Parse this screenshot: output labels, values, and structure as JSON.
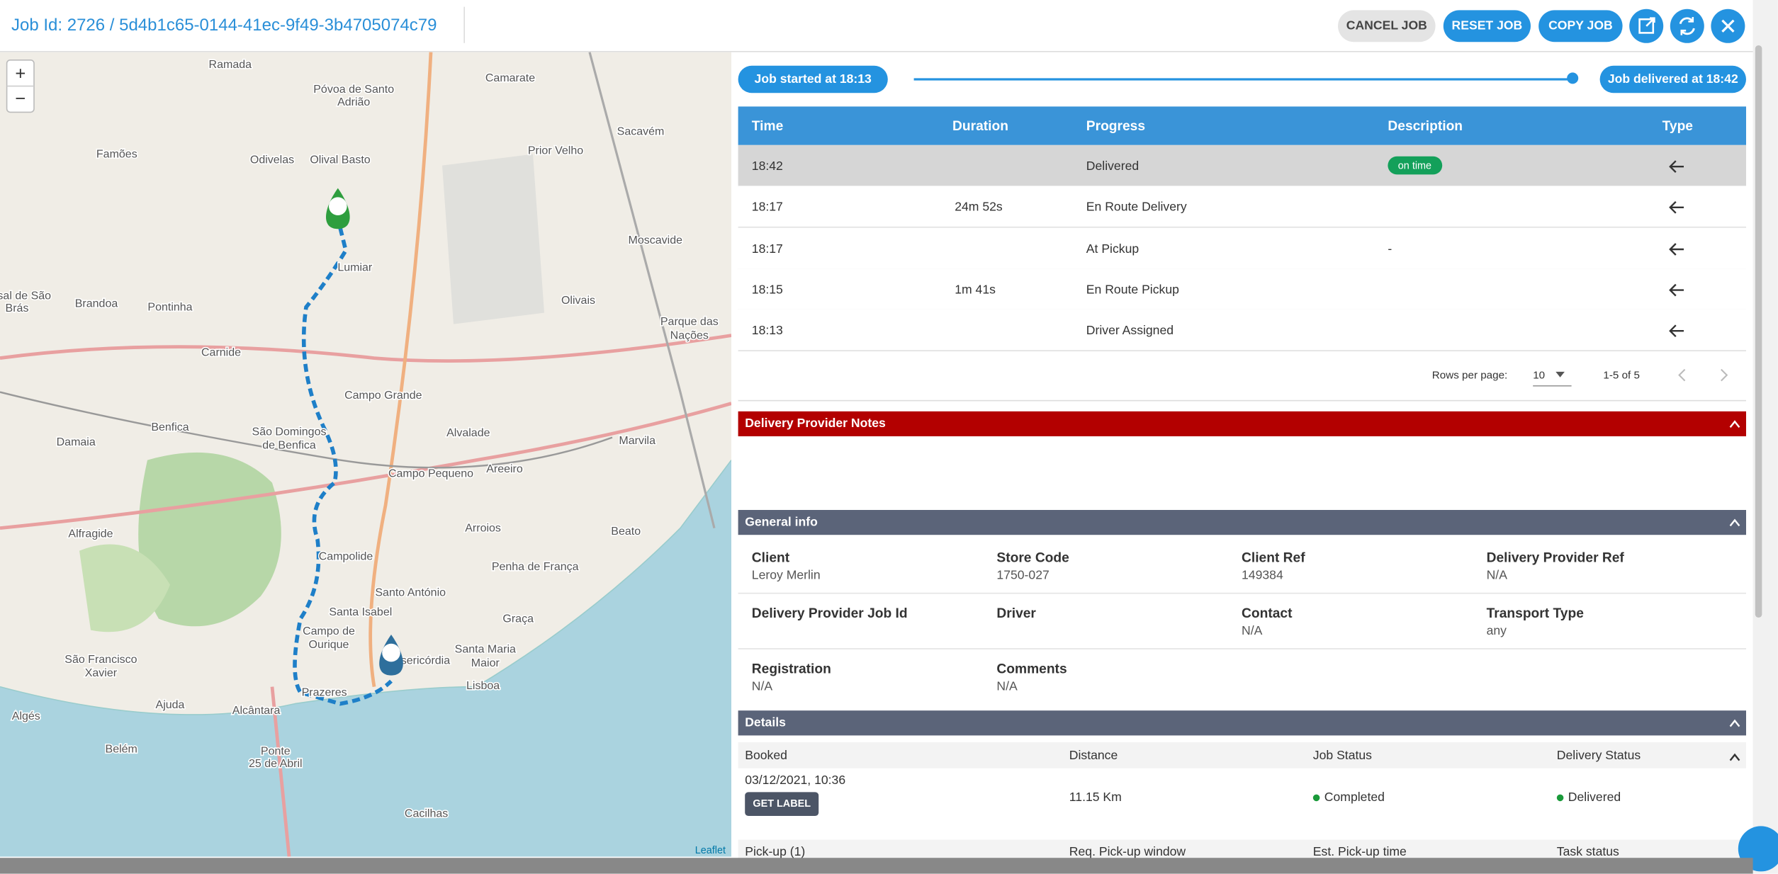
{
  "header": {
    "job_id": "Job Id: 2726 / 5d4b1c65-0144-41ec-9f49-3b4705074c79",
    "buttons": [
      "CANCEL JOB",
      "RESET JOB",
      "COPY JOB"
    ]
  },
  "timeline": {
    "started": "Job started at 18:13",
    "delivered": "Job delivered at 18:42"
  },
  "table": {
    "columns": [
      "Time",
      "Duration",
      "Progress",
      "Description",
      "Type"
    ],
    "rows": [
      {
        "time": "18:42",
        "progress": "Delivered",
        "description": "on time"
      },
      {
        "time": "18:17",
        "duration": "24m 52s",
        "progress": "En Route Delivery"
      },
      {
        "time": "18:17",
        "progress": "At Pickup",
        "description": "-"
      },
      {
        "time": "18:15",
        "duration": "1m 41s",
        "progress": "En Route Pickup"
      },
      {
        "time": "18:13",
        "progress": "Driver Assigned"
      }
    ],
    "rows_per_page_label": "Rows per page:",
    "rows_per_page": "10",
    "range": "1-5 of 5"
  },
  "notes": {
    "title": "Delivery Provider Notes"
  },
  "general_info": {
    "title": "General info",
    "fields": [
      {
        "label": "Client",
        "value": "Leroy Merlin"
      },
      {
        "label": "Store Code",
        "value": "1750-027"
      },
      {
        "label": "Client Ref",
        "value": "149384"
      },
      {
        "label": "Delivery Provider Ref",
        "value": "N/A"
      },
      {
        "label": "Delivery Provider Job Id"
      },
      {
        "label": "Driver"
      },
      {
        "label": "Contact",
        "value": "N/A"
      },
      {
        "label": "Transport Type",
        "value": "any"
      },
      {
        "label": "Registration",
        "value": "N/A"
      },
      {
        "label": "Comments",
        "value": "N/A"
      }
    ]
  },
  "details": {
    "title": "Details",
    "columns": [
      "Booked",
      "Distance",
      "Job Status",
      "Delivery Status"
    ],
    "booked": "03/12/2021, 10:36",
    "button": "GET LABEL",
    "distance": "11.15 Km",
    "job_status": "Completed",
    "delivery_status": "Delivered",
    "pickup_columns": [
      "Pick-up (1)",
      "Req. Pick-up window",
      "Est. Pick-up time",
      "Task status"
    ]
  },
  "map": {
    "zoom_in": "+",
    "zoom_out": "−",
    "attribution": "Leaflet",
    "labels": [
      "Ramada",
      "Póvoa de Santo",
      "Adrião",
      "Camarate",
      "Sacavém",
      "Famões",
      "Odivelas",
      "Olival Basto",
      "Prior Velho",
      "Moscavide",
      "Casal de São",
      "Brás",
      "Brandoa",
      "Pontinha",
      "Lumiar",
      "Olivais",
      "Carnide",
      "Campo Grande",
      "Benfica",
      "São Domingos",
      "de Benfica",
      "Alvalade",
      "Marvila",
      "Damaia",
      "Campo Pequeno",
      "Areeiro",
      "Arroios",
      "Beato",
      "Alfragide",
      "Campolide",
      "Penha de França",
      "Santo António",
      "Santa Isabel",
      "Campo de",
      "Ourique",
      "Graça",
      "São Francisco",
      "Xavier",
      "Misericórdia",
      "Santa Maria",
      "Maior",
      "Lisboa",
      "Prazeres",
      "Ajuda",
      "Alcântara",
      "Algés",
      "Belém",
      "Ponte",
      "25 de Abril",
      "Cacilhas",
      "Parque das",
      "Nações"
    ]
  }
}
